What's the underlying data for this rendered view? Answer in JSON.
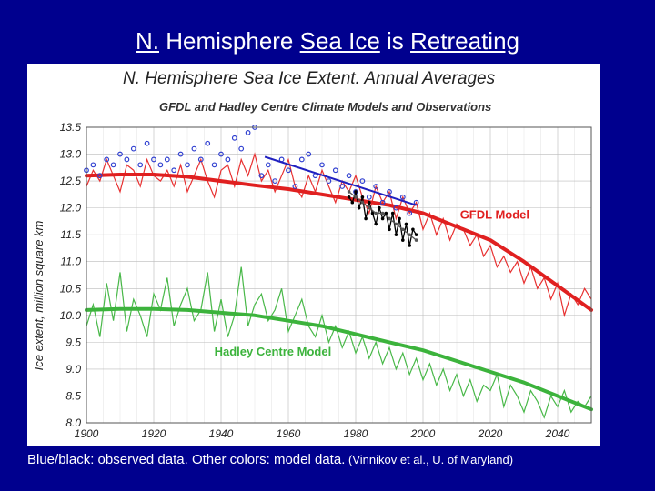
{
  "slide": {
    "title_parts": [
      {
        "text": "N.",
        "underline": true
      },
      {
        "text": " Hemisphere ",
        "underline": false
      },
      {
        "text": "Sea Ice",
        "underline": true
      },
      {
        "text": " is ",
        "underline": false
      },
      {
        "text": "Retreating",
        "underline": true
      }
    ],
    "caption_main": "Blue/black: observed data. Other colors: model data.",
    "caption_source": " (Vinnikov et al., U. of Maryland)",
    "background_color": "#00008e"
  },
  "chart_data": {
    "type": "line",
    "title": "N. Hemisphere Sea Ice Extent. Annual Averages",
    "subtitle": "GFDL and Hadley Centre Climate Models and Observations",
    "xlabel": "",
    "ylabel": "Ice extent, million square km",
    "xlim": [
      1900,
      2050
    ],
    "ylim": [
      8.0,
      13.5
    ],
    "xticks": [
      1900,
      1920,
      1940,
      1960,
      1980,
      2000,
      2020,
      2040
    ],
    "yticks": [
      8.0,
      8.5,
      9.0,
      9.5,
      10.0,
      10.5,
      11.0,
      11.5,
      12.0,
      12.5,
      13.0,
      13.5
    ],
    "ytick_labels": [
      "8.0",
      "8.5",
      "9.0",
      "9.5",
      "10.0",
      "10.5",
      "11.0",
      "11.5",
      "12.0",
      "12.5",
      "13.0",
      "13.5"
    ],
    "grid": true,
    "annotations": [
      {
        "text": "GFDL Model",
        "x": 2011,
        "y": 11.8,
        "color": "#e02020"
      },
      {
        "text": "Hadley Centre Model",
        "x": 1938,
        "y": 9.25,
        "color": "#3cb33c"
      }
    ],
    "series": [
      {
        "name": "GFDL model annual",
        "color": "#e83030",
        "style": "thin",
        "x": [
          1900,
          1902,
          1904,
          1906,
          1908,
          1910,
          1912,
          1914,
          1916,
          1918,
          1920,
          1922,
          1924,
          1926,
          1928,
          1930,
          1932,
          1934,
          1936,
          1938,
          1940,
          1942,
          1944,
          1946,
          1948,
          1950,
          1952,
          1954,
          1956,
          1958,
          1960,
          1962,
          1964,
          1966,
          1968,
          1970,
          1972,
          1974,
          1976,
          1978,
          1980,
          1982,
          1984,
          1986,
          1988,
          1990,
          1992,
          1994,
          1996,
          1998,
          2000,
          2002,
          2004,
          2006,
          2008,
          2010,
          2012,
          2014,
          2016,
          2018,
          2020,
          2022,
          2024,
          2026,
          2028,
          2030,
          2032,
          2034,
          2036,
          2038,
          2040,
          2042,
          2044,
          2046,
          2048,
          2050
        ],
        "y": [
          12.4,
          12.7,
          12.5,
          12.9,
          12.6,
          12.3,
          12.8,
          12.7,
          12.4,
          12.9,
          12.6,
          12.5,
          12.7,
          12.4,
          12.8,
          12.3,
          12.6,
          12.9,
          12.5,
          12.2,
          12.7,
          12.8,
          12.4,
          12.9,
          12.6,
          13.0,
          12.5,
          12.7,
          12.3,
          12.6,
          12.9,
          12.4,
          12.2,
          12.6,
          12.3,
          12.7,
          12.4,
          12.1,
          12.5,
          12.3,
          12.6,
          12.2,
          11.9,
          12.4,
          12.1,
          12.3,
          11.8,
          12.2,
          11.9,
          12.1,
          11.6,
          11.9,
          11.5,
          11.8,
          11.4,
          11.7,
          11.6,
          11.3,
          11.5,
          11.1,
          11.3,
          10.9,
          11.1,
          10.8,
          11.0,
          10.6,
          10.9,
          10.5,
          10.7,
          10.3,
          10.6,
          10.0,
          10.4,
          10.2,
          10.5,
          10.3
        ]
      },
      {
        "name": "GFDL model smoothed",
        "color": "#e02020",
        "style": "thick",
        "x": [
          1900,
          1910,
          1920,
          1930,
          1940,
          1950,
          1960,
          1970,
          1980,
          1990,
          2000,
          2010,
          2020,
          2030,
          2040,
          2050
        ],
        "y": [
          12.6,
          12.62,
          12.62,
          12.58,
          12.5,
          12.42,
          12.35,
          12.25,
          12.15,
          12.05,
          11.9,
          11.65,
          11.4,
          11.0,
          10.55,
          10.1
        ]
      },
      {
        "name": "Hadley Centre model annual",
        "color": "#48b848",
        "style": "thin",
        "x": [
          1900,
          1902,
          1904,
          1906,
          1908,
          1910,
          1912,
          1914,
          1916,
          1918,
          1920,
          1922,
          1924,
          1926,
          1928,
          1930,
          1932,
          1934,
          1936,
          1938,
          1940,
          1942,
          1944,
          1946,
          1948,
          1950,
          1952,
          1954,
          1956,
          1958,
          1960,
          1962,
          1964,
          1966,
          1968,
          1970,
          1972,
          1974,
          1976,
          1978,
          1980,
          1982,
          1984,
          1986,
          1988,
          1990,
          1992,
          1994,
          1996,
          1998,
          2000,
          2002,
          2004,
          2006,
          2008,
          2010,
          2012,
          2014,
          2016,
          2018,
          2020,
          2022,
          2024,
          2026,
          2028,
          2030,
          2032,
          2034,
          2036,
          2038,
          2040,
          2042,
          2044,
          2046,
          2048,
          2050
        ],
        "y": [
          9.8,
          10.2,
          9.6,
          10.6,
          9.9,
          10.8,
          9.7,
          10.3,
          10.0,
          9.6,
          10.4,
          10.1,
          10.7,
          9.8,
          10.2,
          10.5,
          9.9,
          10.1,
          10.8,
          9.7,
          10.3,
          9.6,
          10.0,
          10.9,
          9.8,
          10.2,
          10.4,
          9.9,
          10.1,
          10.5,
          9.7,
          10.0,
          10.3,
          9.8,
          9.6,
          10.0,
          9.5,
          9.8,
          9.4,
          9.7,
          9.3,
          9.6,
          9.2,
          9.5,
          9.1,
          9.4,
          9.0,
          9.3,
          8.9,
          9.2,
          8.8,
          9.1,
          8.7,
          9.0,
          8.6,
          8.9,
          8.5,
          8.8,
          8.4,
          8.7,
          8.6,
          8.9,
          8.3,
          8.7,
          8.5,
          8.2,
          8.6,
          8.4,
          8.1,
          8.5,
          8.3,
          8.6,
          8.2,
          8.4,
          8.3,
          8.5
        ]
      },
      {
        "name": "Hadley Centre model smoothed",
        "color": "#3cb33c",
        "style": "thick",
        "x": [
          1900,
          1910,
          1920,
          1930,
          1940,
          1950,
          1960,
          1970,
          1980,
          1990,
          2000,
          2010,
          2020,
          2030,
          2040,
          2050
        ],
        "y": [
          10.1,
          10.12,
          10.12,
          10.1,
          10.05,
          10.0,
          9.9,
          9.8,
          9.65,
          9.5,
          9.35,
          9.15,
          8.95,
          8.75,
          8.5,
          8.25
        ]
      },
      {
        "name": "Observed (Hadley) points",
        "color": "#2f3fd0",
        "style": "dots",
        "x": [
          1900,
          1902,
          1904,
          1906,
          1908,
          1910,
          1912,
          1914,
          1916,
          1918,
          1920,
          1922,
          1924,
          1926,
          1928,
          1930,
          1932,
          1934,
          1936,
          1938,
          1940,
          1942,
          1944,
          1946,
          1948,
          1950,
          1952,
          1954,
          1956,
          1958,
          1960,
          1962,
          1964,
          1966,
          1968,
          1970,
          1972,
          1974,
          1976,
          1978,
          1980,
          1982,
          1984,
          1986,
          1988,
          1990,
          1992,
          1994,
          1996,
          1998
        ],
        "y": [
          12.7,
          12.8,
          12.6,
          12.9,
          12.8,
          13.0,
          12.9,
          13.1,
          12.8,
          13.2,
          12.9,
          12.8,
          12.9,
          12.7,
          13.0,
          12.8,
          13.1,
          12.9,
          13.2,
          12.8,
          13.0,
          12.9,
          13.3,
          13.1,
          13.4,
          13.5,
          12.6,
          12.8,
          12.5,
          12.9,
          12.7,
          12.4,
          12.9,
          13.0,
          12.6,
          12.8,
          12.5,
          12.7,
          12.4,
          12.6,
          12.3,
          12.5,
          12.2,
          12.4,
          12.1,
          12.3,
          12.0,
          12.2,
          11.9,
          12.1
        ]
      },
      {
        "name": "Observed trend",
        "color": "#2020c0",
        "style": "line",
        "x": [
          1953,
          1998
        ],
        "y": [
          12.95,
          12.05
        ]
      },
      {
        "name": "Observed (satellite) black",
        "color": "#000000",
        "style": "dotline",
        "x": [
          1978,
          1979,
          1980,
          1981,
          1982,
          1983,
          1984,
          1985,
          1986,
          1987,
          1988,
          1989,
          1990,
          1991,
          1992,
          1993,
          1994,
          1995,
          1996,
          1997,
          1998
        ],
        "y": [
          12.2,
          12.1,
          12.3,
          12.0,
          12.2,
          11.8,
          12.1,
          11.9,
          11.7,
          12.0,
          11.8,
          11.9,
          11.6,
          11.9,
          11.5,
          11.8,
          11.4,
          11.7,
          11.3,
          11.6,
          11.5
        ]
      },
      {
        "name": "Observed (satellite) grey",
        "color": "#555555",
        "style": "dotline",
        "x": [
          1978,
          1980,
          1982,
          1984,
          1986,
          1988,
          1990,
          1992,
          1994,
          1996,
          1998
        ],
        "y": [
          12.3,
          12.2,
          12.1,
          12.0,
          11.9,
          11.9,
          11.8,
          11.7,
          11.6,
          11.5,
          11.4
        ]
      }
    ]
  }
}
